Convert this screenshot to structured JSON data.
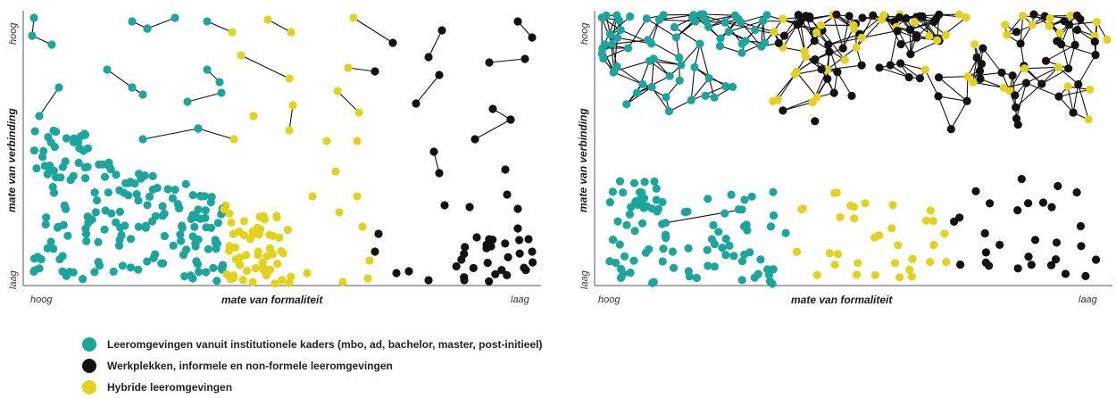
{
  "colors": {
    "institutional": "#1aa69c",
    "workplace": "#111111",
    "hybrid": "#e3d21c",
    "axis": "#555555"
  },
  "panels": [
    {
      "y_title": "mate van verbinding",
      "y_top": "hoog",
      "y_bottom": "laag",
      "x_title": "mate van formaliteit",
      "x_left": "hoog",
      "x_right": "laag"
    },
    {
      "y_title": "mate van verbinding",
      "y_top": "hoog",
      "y_bottom": "laag",
      "x_title": "mate van formaliteit",
      "x_left": "hoog",
      "x_right": "laag"
    }
  ],
  "legend": [
    {
      "key": "institutional",
      "icon": "teal-dot-icon",
      "label": "Leeromgevingen vanuit institutionele kaders (mbo, ad, bachelor, master, post-initieel)"
    },
    {
      "key": "workplace",
      "icon": "black-dot-icon",
      "label": "Werkplekken, informele en non-formele leeromgevingen"
    },
    {
      "key": "hybrid",
      "icon": "yellow-dot-icon",
      "label": "Hybride leeromgevingen"
    }
  ]
}
